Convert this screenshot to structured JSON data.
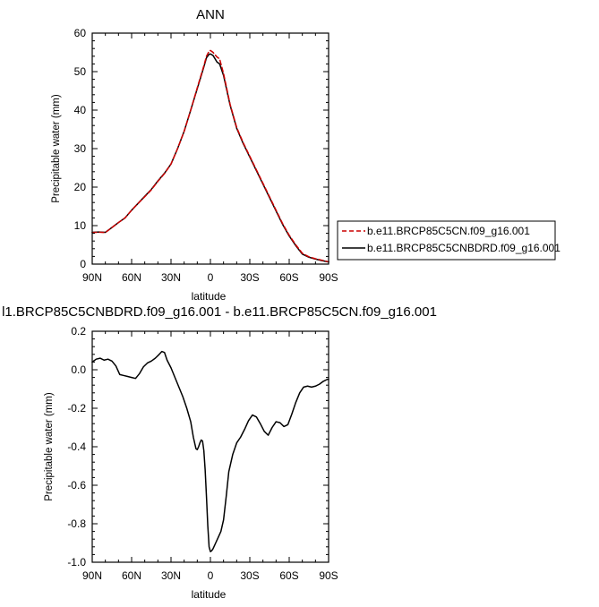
{
  "chart_data": [
    {
      "type": "line",
      "title": "ANN",
      "xlabel": "latitude",
      "ylabel": "Precipitable water (mm)",
      "xlim": [
        90,
        -90
      ],
      "ylim": [
        0,
        60
      ],
      "x_tick_values": [
        90,
        60,
        30,
        0,
        -30,
        -60,
        -90
      ],
      "x_tick_labels": [
        "90N",
        "60N",
        "30N",
        "0",
        "30S",
        "60S",
        "90S"
      ],
      "y_tick_values": [
        0,
        10,
        20,
        30,
        40,
        50,
        60
      ],
      "y_tick_labels": [
        "0",
        "10",
        "20",
        "30",
        "40",
        "50",
        "60"
      ],
      "legend_position": "right",
      "series": [
        {
          "name": "b.e11.BRCP85C5CN.f09_g16.001",
          "color": "#cc0000",
          "dash": "dashed",
          "x": [
            90,
            85,
            80,
            75,
            70,
            65,
            60,
            55,
            50,
            45,
            40,
            35,
            30,
            25,
            20,
            15,
            10,
            5,
            3,
            1,
            0,
            -2,
            -5,
            -7,
            -10,
            -15,
            -20,
            -25,
            -30,
            -35,
            -40,
            -45,
            -50,
            -55,
            -60,
            -65,
            -70,
            -75,
            -80,
            -85,
            -90
          ],
          "y": [
            8.2,
            8.3,
            8.2,
            9.5,
            10.8,
            12,
            14,
            15.8,
            17.5,
            19.3,
            21.5,
            23.5,
            26,
            30,
            34.5,
            40,
            45.8,
            51.5,
            54,
            55.3,
            55.5,
            55,
            53.8,
            53.3,
            49.5,
            41.5,
            35.5,
            31.5,
            28,
            24.5,
            21,
            17.5,
            14,
            10.5,
            7.5,
            5,
            2.8,
            1.9,
            1.4,
            1.0,
            0.6
          ]
        },
        {
          "name": "b.e11.BRCP85C5CNBDRD.f09_g16.001",
          "color": "#000000",
          "dash": "solid",
          "x": [
            90,
            85,
            80,
            75,
            70,
            65,
            60,
            55,
            50,
            45,
            40,
            35,
            30,
            25,
            20,
            15,
            10,
            5,
            3,
            1,
            0,
            -2,
            -5,
            -7,
            -10,
            -15,
            -20,
            -25,
            -30,
            -35,
            -40,
            -45,
            -50,
            -55,
            -60,
            -65,
            -70,
            -75,
            -80,
            -85,
            -90
          ],
          "y": [
            8.25,
            8.35,
            8.25,
            9.5,
            10.8,
            12,
            14,
            15.8,
            17.6,
            19.4,
            21.6,
            23.6,
            26,
            30,
            34.5,
            40,
            45.6,
            51.2,
            53.6,
            54.5,
            54.6,
            54.2,
            52.5,
            52,
            49,
            41.3,
            35.3,
            31.3,
            27.8,
            24.3,
            20.8,
            17.3,
            13.8,
            10.3,
            7.3,
            4.8,
            2.6,
            1.8,
            1.3,
            0.9,
            0.55
          ]
        }
      ]
    },
    {
      "type": "line",
      "title": "l1.BRCP85C5CNBDRD.f09_g16.001 - b.e11.BRCP85C5CN.f09_g16.001",
      "xlabel": "latitude",
      "ylabel": "Precipitable water (mm)",
      "xlim": [
        90,
        -90
      ],
      "ylim": [
        -1.0,
        0.2
      ],
      "x_tick_values": [
        90,
        60,
        30,
        0,
        -30,
        -60,
        -90
      ],
      "x_tick_labels": [
        "90N",
        "60N",
        "30N",
        "0",
        "30S",
        "60S",
        "90S"
      ],
      "y_tick_values": [
        0.2,
        0.0,
        -0.2,
        -0.4,
        -0.6,
        -0.8,
        -1.0
      ],
      "y_tick_labels": [
        "0.2",
        "0.0",
        "-0.2",
        "-0.4",
        "-0.6",
        "-0.8",
        "-1.0"
      ],
      "series": [
        {
          "color": "#000000",
          "dash": "solid",
          "x": [
            90,
            87,
            84,
            81,
            78,
            75,
            72,
            69,
            66,
            63,
            60,
            57,
            54,
            51,
            48,
            45,
            42,
            39,
            37,
            35,
            33,
            30,
            27,
            24,
            21,
            18,
            15,
            13,
            11,
            10,
            9,
            8,
            7,
            6,
            5,
            4,
            3,
            2,
            1,
            0,
            -1,
            -2,
            -4,
            -6,
            -8,
            -10,
            -12,
            -14,
            -17,
            -20,
            -23,
            -26,
            -29,
            -32,
            -35,
            -38,
            -41,
            -44,
            -47,
            -50,
            -53,
            -56,
            -59,
            -62,
            -65,
            -68,
            -71,
            -74,
            -77,
            -80,
            -83,
            -86,
            -89,
            -90
          ],
          "y": [
            0.04,
            0.055,
            0.06,
            0.05,
            0.055,
            0.045,
            0.02,
            -0.025,
            -0.03,
            -0.035,
            -0.04,
            -0.045,
            -0.02,
            0.015,
            0.035,
            0.045,
            0.06,
            0.08,
            0.095,
            0.09,
            0.05,
            0.01,
            -0.04,
            -0.09,
            -0.14,
            -0.2,
            -0.27,
            -0.35,
            -0.41,
            -0.415,
            -0.4,
            -0.38,
            -0.365,
            -0.37,
            -0.42,
            -0.52,
            -0.66,
            -0.81,
            -0.92,
            -0.945,
            -0.94,
            -0.93,
            -0.9,
            -0.87,
            -0.84,
            -0.78,
            -0.66,
            -0.53,
            -0.44,
            -0.38,
            -0.35,
            -0.31,
            -0.265,
            -0.235,
            -0.245,
            -0.28,
            -0.32,
            -0.34,
            -0.3,
            -0.27,
            -0.275,
            -0.295,
            -0.285,
            -0.23,
            -0.17,
            -0.12,
            -0.09,
            -0.085,
            -0.09,
            -0.085,
            -0.075,
            -0.06,
            -0.05,
            -0.05
          ]
        }
      ]
    }
  ]
}
